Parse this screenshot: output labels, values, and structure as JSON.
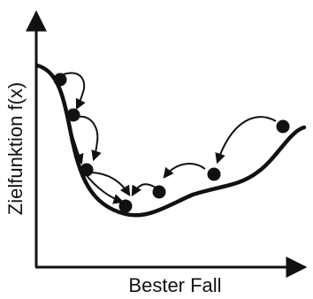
{
  "diagram": {
    "y_axis_label": "Zielfunktion f(x)",
    "x_axis_label": "Bester Fall",
    "colors": {
      "ink": "#111111",
      "background": "#ffffff"
    },
    "points": [
      {
        "id": "p1"
      },
      {
        "id": "p2"
      },
      {
        "id": "p3"
      },
      {
        "id": "p4"
      },
      {
        "id": "p5"
      },
      {
        "id": "p6"
      },
      {
        "id": "p7"
      }
    ]
  }
}
